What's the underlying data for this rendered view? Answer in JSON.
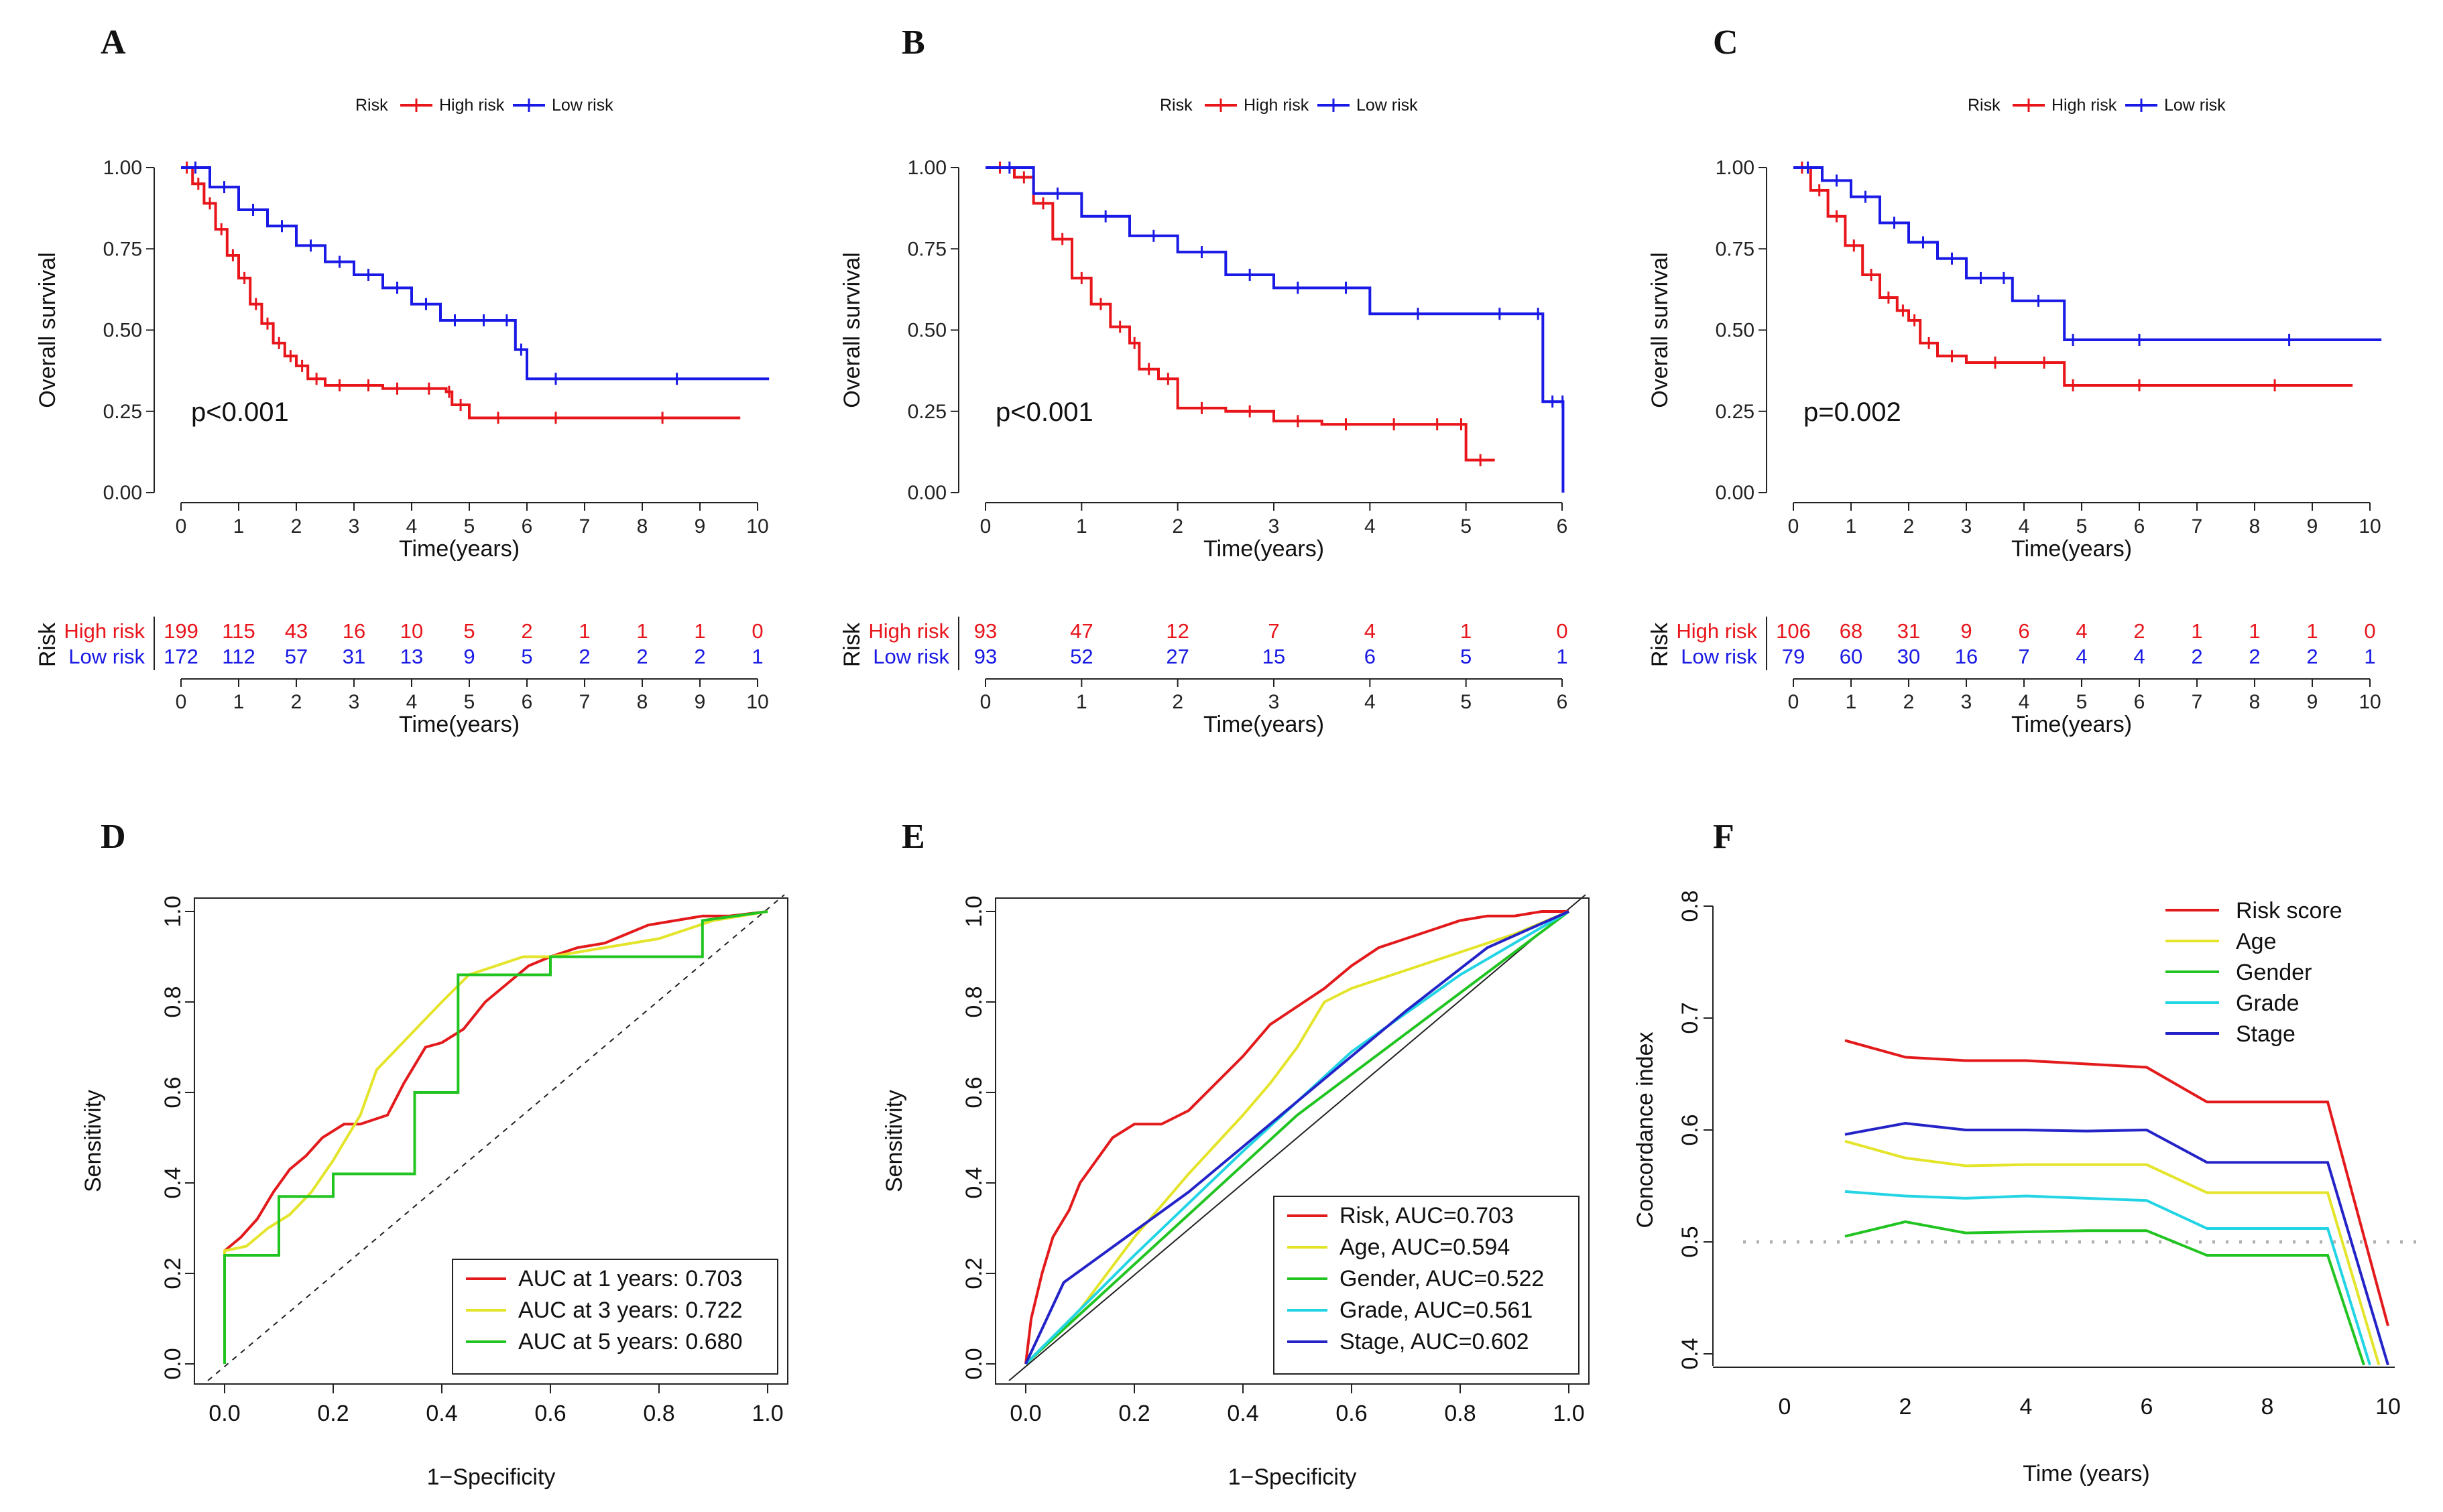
{
  "panels": {
    "A": "A",
    "B": "B",
    "C": "C",
    "D": "D",
    "E": "E",
    "F": "F"
  },
  "colors": {
    "high": "#e8151b",
    "low": "#1a1ae6",
    "risk": "#e31a1c",
    "age": "#e4e42a",
    "gender": "#22c422",
    "grade": "#22d4e4",
    "stage": "#2323c8"
  },
  "km_common": {
    "legend_title": "Risk",
    "legend_high": "High risk",
    "legend_low": "Low risk",
    "ylabel": "Overall survival",
    "xlabel": "Time(years)",
    "table_title": "Risk",
    "table_high": "High risk",
    "table_low": "Low risk",
    "yticks": [
      "0.00",
      "0.25",
      "0.50",
      "0.75",
      "1.00"
    ]
  },
  "km_xticks10": [
    "0",
    "1",
    "2",
    "3",
    "4",
    "5",
    "6",
    "7",
    "8",
    "9",
    "10"
  ],
  "km_xticks6": [
    "0",
    "1",
    "2",
    "3",
    "4",
    "5",
    "6"
  ],
  "roc_common": {
    "xlabel": "1−Specificity",
    "ylabel": "Sensitivity",
    "ticks": [
      "0.0",
      "0.2",
      "0.4",
      "0.6",
      "0.8",
      "1.0"
    ]
  },
  "chart_data": [
    {
      "panel": "A",
      "type": "line",
      "subtype": "kaplan-meier",
      "p_value": "p<0.001",
      "xlim": [
        0,
        10
      ],
      "ylim": [
        0,
        1
      ],
      "series": [
        {
          "name": "High risk",
          "x": [
            0,
            0.2,
            0.4,
            0.6,
            0.8,
            1.0,
            1.2,
            1.4,
            1.6,
            1.8,
            2.0,
            2.2,
            2.5,
            3.0,
            3.5,
            4.0,
            4.6,
            4.7,
            5.0,
            6.0,
            7.0,
            9.7
          ],
          "y": [
            1.0,
            0.95,
            0.89,
            0.81,
            0.73,
            0.66,
            0.58,
            0.52,
            0.46,
            0.42,
            0.39,
            0.35,
            0.33,
            0.33,
            0.32,
            0.32,
            0.31,
            0.27,
            0.23,
            0.23,
            0.23,
            0.23
          ]
        },
        {
          "name": "Low risk",
          "x": [
            0,
            0.5,
            1.0,
            1.5,
            2.0,
            2.5,
            3.0,
            3.5,
            4.0,
            4.5,
            5.0,
            5.5,
            5.8,
            6.0,
            7.0,
            10.2
          ],
          "y": [
            1.0,
            0.94,
            0.87,
            0.82,
            0.76,
            0.71,
            0.67,
            0.63,
            0.58,
            0.53,
            0.53,
            0.53,
            0.44,
            0.35,
            0.35,
            0.35
          ]
        }
      ],
      "risk_table": {
        "time": [
          0,
          1,
          2,
          3,
          4,
          5,
          6,
          7,
          8,
          9,
          10
        ],
        "high": [
          "199",
          "115",
          "43",
          "16",
          "10",
          "5",
          "2",
          "1",
          "1",
          "1",
          "0"
        ],
        "low": [
          "172",
          "112",
          "57",
          "31",
          "13",
          "9",
          "5",
          "2",
          "2",
          "2",
          "1"
        ]
      }
    },
    {
      "panel": "B",
      "type": "line",
      "subtype": "kaplan-meier",
      "p_value": "p<0.001",
      "xlim": [
        0,
        6
      ],
      "ylim": [
        0,
        1
      ],
      "series": [
        {
          "name": "High risk",
          "x": [
            0,
            0.3,
            0.5,
            0.7,
            0.9,
            1.1,
            1.3,
            1.5,
            1.6,
            1.8,
            2.0,
            2.5,
            3.0,
            3.5,
            4.0,
            4.5,
            4.9,
            5.0,
            5.3
          ],
          "y": [
            1.0,
            0.97,
            0.89,
            0.78,
            0.66,
            0.58,
            0.51,
            0.46,
            0.38,
            0.35,
            0.26,
            0.25,
            0.22,
            0.21,
            0.21,
            0.21,
            0.21,
            0.1,
            0.1
          ]
        },
        {
          "name": "Low risk",
          "x": [
            0,
            0.5,
            1.0,
            1.5,
            2.0,
            2.5,
            3.0,
            3.5,
            4.0,
            5.0,
            5.7,
            5.8,
            6.0,
            6.01
          ],
          "y": [
            1.0,
            0.92,
            0.85,
            0.79,
            0.74,
            0.67,
            0.63,
            0.63,
            0.55,
            0.55,
            0.55,
            0.28,
            0.28,
            0.0
          ]
        }
      ],
      "risk_table": {
        "time": [
          0,
          1,
          2,
          3,
          4,
          5,
          6
        ],
        "high": [
          "93",
          "47",
          "12",
          "7",
          "4",
          "1",
          "0"
        ],
        "low": [
          "93",
          "52",
          "27",
          "15",
          "6",
          "5",
          "1"
        ]
      }
    },
    {
      "panel": "C",
      "type": "line",
      "subtype": "kaplan-meier",
      "p_value": "p=0.002",
      "xlim": [
        0,
        10
      ],
      "ylim": [
        0,
        1
      ],
      "series": [
        {
          "name": "High risk",
          "x": [
            0,
            0.3,
            0.6,
            0.9,
            1.2,
            1.5,
            1.8,
            2.0,
            2.2,
            2.5,
            3.0,
            4.0,
            4.7,
            5.0,
            7.0,
            9.7
          ],
          "y": [
            1.0,
            0.93,
            0.85,
            0.76,
            0.67,
            0.6,
            0.56,
            0.53,
            0.46,
            0.42,
            0.4,
            0.4,
            0.33,
            0.33,
            0.33,
            0.33
          ]
        },
        {
          "name": "Low risk",
          "x": [
            0,
            0.5,
            1.0,
            1.5,
            2.0,
            2.5,
            3.0,
            3.5,
            3.8,
            4.7,
            5.0,
            7.0,
            10.2
          ],
          "y": [
            1.0,
            0.96,
            0.91,
            0.83,
            0.77,
            0.72,
            0.66,
            0.66,
            0.59,
            0.47,
            0.47,
            0.47,
            0.47
          ]
        }
      ],
      "risk_table": {
        "time": [
          0,
          1,
          2,
          3,
          4,
          5,
          6,
          7,
          8,
          9,
          10
        ],
        "high": [
          "106",
          "68",
          "31",
          "9",
          "6",
          "4",
          "2",
          "1",
          "1",
          "1",
          "0"
        ],
        "low": [
          "79",
          "60",
          "30",
          "16",
          "7",
          "4",
          "4",
          "2",
          "2",
          "2",
          "1"
        ]
      }
    },
    {
      "panel": "D",
      "type": "line",
      "subtype": "roc",
      "xlim": [
        0,
        1
      ],
      "ylim": [
        0,
        1
      ],
      "series": [
        {
          "name": "AUC at 1 years: 0.703",
          "color": "#e31a1c",
          "x": [
            0,
            0,
            0.03,
            0.06,
            0.09,
            0.12,
            0.15,
            0.18,
            0.22,
            0.25,
            0.3,
            0.33,
            0.37,
            0.4,
            0.44,
            0.48,
            0.52,
            0.56,
            0.6,
            0.65,
            0.7,
            0.74,
            0.78,
            0.83,
            0.88,
            0.93,
            1.0
          ],
          "y": [
            0,
            0.25,
            0.28,
            0.32,
            0.38,
            0.43,
            0.46,
            0.5,
            0.53,
            0.53,
            0.55,
            0.62,
            0.7,
            0.71,
            0.74,
            0.8,
            0.84,
            0.88,
            0.9,
            0.92,
            0.93,
            0.95,
            0.97,
            0.98,
            0.99,
            0.99,
            1.0
          ]
        },
        {
          "name": "AUC at 3 years: 0.722",
          "color": "#e4e42a",
          "x": [
            0,
            0,
            0.04,
            0.08,
            0.12,
            0.16,
            0.2,
            0.25,
            0.28,
            0.32,
            0.36,
            0.4,
            0.45,
            0.5,
            0.55,
            0.6,
            0.65,
            0.7,
            0.8,
            0.85,
            0.9,
            1.0
          ],
          "y": [
            0,
            0.25,
            0.26,
            0.3,
            0.33,
            0.38,
            0.45,
            0.55,
            0.65,
            0.7,
            0.75,
            0.8,
            0.86,
            0.88,
            0.9,
            0.9,
            0.91,
            0.92,
            0.94,
            0.96,
            0.98,
            1.0
          ]
        },
        {
          "name": "AUC at 5 years: 0.680",
          "color": "#22c422",
          "x": [
            0,
            0,
            0.1,
            0.1,
            0.2,
            0.2,
            0.35,
            0.35,
            0.43,
            0.43,
            0.6,
            0.6,
            0.88,
            0.88,
            1.0
          ],
          "y": [
            0,
            0.24,
            0.24,
            0.37,
            0.37,
            0.42,
            0.42,
            0.6,
            0.6,
            0.86,
            0.86,
            0.9,
            0.9,
            0.98,
            1.0
          ]
        }
      ]
    },
    {
      "panel": "E",
      "type": "line",
      "subtype": "roc",
      "xlim": [
        0,
        1
      ],
      "ylim": [
        0,
        1
      ],
      "series": [
        {
          "name": "Risk, AUC=0.703",
          "color": "#e31a1c",
          "x": [
            0,
            0.01,
            0.03,
            0.05,
            0.08,
            0.1,
            0.13,
            0.16,
            0.2,
            0.25,
            0.3,
            0.35,
            0.4,
            0.45,
            0.5,
            0.55,
            0.6,
            0.65,
            0.7,
            0.75,
            0.8,
            0.85,
            0.9,
            0.95,
            1.0
          ],
          "y": [
            0,
            0.1,
            0.2,
            0.28,
            0.34,
            0.4,
            0.45,
            0.5,
            0.53,
            0.53,
            0.56,
            0.62,
            0.68,
            0.75,
            0.79,
            0.83,
            0.88,
            0.92,
            0.94,
            0.96,
            0.98,
            0.99,
            0.99,
            1.0,
            1.0
          ]
        },
        {
          "name": "Age, AUC=0.594",
          "color": "#e4e42a",
          "x": [
            0,
            0.1,
            0.2,
            0.3,
            0.4,
            0.45,
            0.5,
            0.55,
            0.6,
            0.7,
            0.8,
            0.9,
            1.0
          ],
          "y": [
            0,
            0.12,
            0.28,
            0.42,
            0.55,
            0.62,
            0.7,
            0.8,
            0.83,
            0.87,
            0.91,
            0.95,
            1.0
          ]
        },
        {
          "name": "Gender, AUC=0.522",
          "color": "#22c422",
          "x": [
            0,
            1.0
          ],
          "y": [
            0,
            1.0
          ],
          "mid": [
            0.5,
            0.55
          ]
        },
        {
          "name": "Grade, AUC=0.561",
          "color": "#22d4e4",
          "x": [
            0,
            0.2,
            0.4,
            0.6,
            0.8,
            1.0
          ],
          "y": [
            0,
            0.24,
            0.47,
            0.69,
            0.86,
            1.0
          ]
        },
        {
          "name": "Stage, AUC=0.602",
          "color": "#2323c8",
          "x": [
            0,
            0.07,
            0.3,
            0.5,
            0.7,
            0.85,
            1.0
          ],
          "y": [
            0,
            0.18,
            0.38,
            0.58,
            0.78,
            0.92,
            1.0
          ]
        }
      ]
    },
    {
      "panel": "F",
      "type": "line",
      "subtype": "concordance",
      "xlabel": "Time (years)",
      "ylabel": "Concordance index",
      "xlim": [
        0,
        10
      ],
      "ylim": [
        0.4,
        0.8
      ],
      "reference_line": 0.5,
      "xticks": [
        "0",
        "2",
        "4",
        "6",
        "8",
        "10"
      ],
      "yticks": [
        "0.4",
        "0.5",
        "0.6",
        "0.7",
        "0.8"
      ],
      "series": [
        {
          "name": "Risk score",
          "color": "#e31a1c",
          "x": [
            1,
            2,
            3,
            4,
            5,
            6,
            7,
            8,
            9,
            10
          ],
          "y": [
            0.68,
            0.665,
            0.662,
            0.662,
            0.659,
            0.656,
            0.625,
            0.625,
            0.625,
            0.425
          ]
        },
        {
          "name": "Age",
          "color": "#e4e42a",
          "x": [
            1,
            2,
            3,
            4,
            5,
            6,
            7,
            8,
            9,
            9.85
          ],
          "y": [
            0.59,
            0.575,
            0.568,
            0.569,
            0.569,
            0.569,
            0.544,
            0.544,
            0.544,
            0.39
          ]
        },
        {
          "name": "Gender",
          "color": "#22c422",
          "x": [
            1,
            2,
            3,
            4,
            5,
            6,
            7,
            8,
            9,
            9.6
          ],
          "y": [
            0.505,
            0.518,
            0.508,
            0.509,
            0.51,
            0.51,
            0.488,
            0.488,
            0.488,
            0.39
          ]
        },
        {
          "name": "Grade",
          "color": "#22d4e4",
          "x": [
            1,
            2,
            3,
            4,
            5,
            6,
            7,
            8,
            9,
            9.7
          ],
          "y": [
            0.545,
            0.541,
            0.539,
            0.541,
            0.539,
            0.537,
            0.512,
            0.512,
            0.512,
            0.39
          ]
        },
        {
          "name": "Stage",
          "color": "#2323c8",
          "x": [
            1,
            2,
            3,
            4,
            5,
            6,
            7,
            8,
            9,
            10
          ],
          "y": [
            0.596,
            0.606,
            0.6,
            0.6,
            0.599,
            0.6,
            0.571,
            0.571,
            0.571,
            0.39
          ]
        }
      ]
    }
  ]
}
